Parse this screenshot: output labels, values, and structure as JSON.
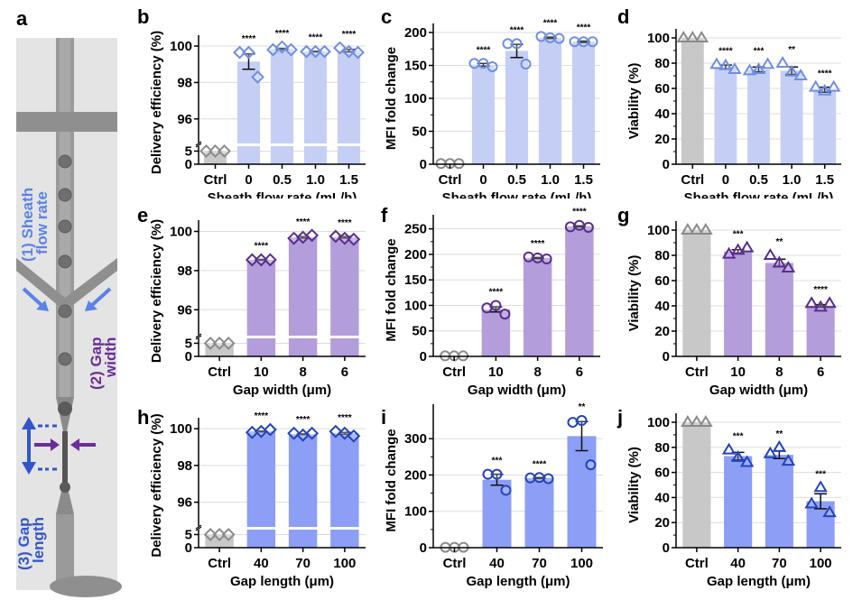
{
  "figure": {
    "panel_a": {
      "letter": "a",
      "labels": {
        "sheath_line1": "(1) Sheath",
        "sheath_line2": "flow rate",
        "gapwidth_line1": "(2) Gap",
        "gapwidth_line2": "width",
        "gaplength_line1": "(3) Gap",
        "gaplength_line2": "length"
      },
      "colors": {
        "sheath": "#5b82e8",
        "gapwidth": "#6a2d9a",
        "gaplength": "#3355cc"
      }
    }
  },
  "chart_data": [
    {
      "panel": "b",
      "type": "bar",
      "title": "",
      "xlabel": "Sheath flow rate (mL/h)",
      "ylabel": "Delivery efficiency (%)",
      "categories": [
        "Ctrl",
        "0",
        "0.5",
        "1.0",
        "1.5"
      ],
      "values": [
        5,
        99.15,
        99.85,
        99.7,
        99.75
      ],
      "errors": [
        0,
        0.42,
        0.03,
        0.02,
        0.07
      ],
      "points": [
        [
          5,
          5,
          5
        ],
        [
          99.65,
          99.65,
          98.3
        ],
        [
          99.8,
          99.95,
          99.8
        ],
        [
          99.7,
          99.7,
          99.7
        ],
        [
          99.9,
          99.7,
          99.65
        ]
      ],
      "significance": [
        "",
        "****",
        "****",
        "****",
        "****"
      ],
      "axis_break": {
        "lower": [
          0,
          5.5
        ],
        "upper": [
          95,
          100.3
        ]
      },
      "yticks_lower": [
        0,
        5
      ],
      "yticks_upper": [
        96,
        98,
        100
      ],
      "marker": "diamond",
      "ctrl_color": "#c8c8c8",
      "bar_color": "#c5cff5",
      "marker_color": "#6f8ee0",
      "grid": true
    },
    {
      "panel": "c",
      "type": "bar",
      "title": "",
      "xlabel": "Sheath flow rate (mL/h)",
      "ylabel": "MFI fold change",
      "categories": [
        "Ctrl",
        "0",
        "0.5",
        "1.0",
        "1.5"
      ],
      "values": [
        1,
        151,
        172,
        192,
        186
      ],
      "errors": [
        0,
        2,
        10,
        1,
        1
      ],
      "points": [
        [
          1,
          1,
          1
        ],
        [
          153,
          153,
          148
        ],
        [
          183,
          183,
          152
        ],
        [
          194,
          192,
          191
        ],
        [
          186,
          186,
          186
        ]
      ],
      "significance": [
        "",
        "****",
        "****",
        "****",
        "****"
      ],
      "ylim": [
        0,
        200
      ],
      "yticks": [
        0,
        50,
        100,
        150,
        200
      ],
      "marker": "circle",
      "ctrl_color": "#c8c8c8",
      "bar_color": "#c5cff5",
      "marker_color": "#6f8ee0",
      "grid": true
    },
    {
      "panel": "d",
      "type": "bar",
      "title": "",
      "xlabel": "Sheath flow rate (mL/h)",
      "ylabel": "Viability (%)",
      "categories": [
        "Ctrl",
        "0",
        "0.5",
        "1.0",
        "1.5"
      ],
      "values": [
        100,
        77,
        75,
        74,
        59
      ],
      "errors": [
        0,
        1.5,
        2,
        3,
        2
      ],
      "points": [
        [
          100,
          100,
          100
        ],
        [
          79,
          78,
          75
        ],
        [
          74,
          75,
          79
        ],
        [
          80,
          73,
          70
        ],
        [
          61,
          58,
          61
        ]
      ],
      "significance": [
        "",
        "****",
        "***",
        "**",
        "****"
      ],
      "ylim": [
        0,
        100
      ],
      "yticks": [
        0,
        20,
        40,
        60,
        80,
        100
      ],
      "marker": "triangle",
      "ctrl_color": "#c8c8c8",
      "bar_color": "#c5cff5",
      "marker_color": "#6f8ee0",
      "grid": true
    },
    {
      "panel": "e",
      "type": "bar",
      "title": "",
      "xlabel": "Gap width (μm)",
      "ylabel": "Delivery efficiency (%)",
      "categories": [
        "Ctrl",
        "10",
        "8",
        "6"
      ],
      "values": [
        5,
        98.55,
        99.7,
        99.7
      ],
      "errors": [
        0,
        0.02,
        0.04,
        0.04
      ],
      "points": [
        [
          5,
          5,
          5
        ],
        [
          98.55,
          98.55,
          98.55
        ],
        [
          99.65,
          99.7,
          99.8
        ],
        [
          99.75,
          99.65,
          99.6
        ]
      ],
      "significance": [
        "",
        "****",
        "****",
        "****"
      ],
      "axis_break": {
        "lower": [
          0,
          5.5
        ],
        "upper": [
          95,
          100.3
        ]
      },
      "yticks_lower": [
        0,
        5
      ],
      "yticks_upper": [
        96,
        98,
        100
      ],
      "marker": "diamond",
      "ctrl_color": "#c8c8c8",
      "bar_color": "#b39ddb",
      "marker_color": "#5a2d8c",
      "grid": true
    },
    {
      "panel": "f",
      "type": "bar",
      "title": "",
      "xlabel": "Gap width (μm)",
      "ylabel": "MFI fold change",
      "categories": [
        "Ctrl",
        "10",
        "8",
        "6"
      ],
      "values": [
        1,
        92,
        193,
        255
      ],
      "errors": [
        0,
        5,
        1,
        1
      ],
      "points": [
        [
          1,
          1,
          1
        ],
        [
          95,
          100,
          83
        ],
        [
          195,
          193,
          191
        ],
        [
          254,
          257,
          253
        ]
      ],
      "significance": [
        "",
        "****",
        "****",
        "****"
      ],
      "ylim": [
        0,
        260
      ],
      "yticks": [
        0,
        50,
        100,
        150,
        200,
        250
      ],
      "marker": "circle",
      "ctrl_color": "#c8c8c8",
      "bar_color": "#b39ddb",
      "marker_color": "#5a2d8c",
      "grid": true
    },
    {
      "panel": "g",
      "type": "bar",
      "title": "",
      "xlabel": "Gap width (μm)",
      "ylabel": "Viability (%)",
      "categories": [
        "Ctrl",
        "10",
        "8",
        "6"
      ],
      "values": [
        100,
        83,
        74,
        40
      ],
      "errors": [
        0,
        1.5,
        3,
        1
      ],
      "points": [
        [
          100,
          100,
          100
        ],
        [
          81,
          84,
          86
        ],
        [
          80,
          74,
          70
        ],
        [
          42,
          39,
          42
        ]
      ],
      "significance": [
        "",
        "***",
        "**",
        "****"
      ],
      "ylim": [
        0,
        100
      ],
      "yticks": [
        0,
        20,
        40,
        60,
        80,
        100
      ],
      "marker": "triangle",
      "ctrl_color": "#c8c8c8",
      "bar_color": "#b39ddb",
      "marker_color": "#5a2d8c",
      "grid": true
    },
    {
      "panel": "h",
      "type": "bar",
      "title": "",
      "xlabel": "Gap length (μm)",
      "ylabel": "Delivery efficiency (%)",
      "categories": [
        "Ctrl",
        "40",
        "70",
        "100"
      ],
      "values": [
        5,
        99.85,
        99.7,
        99.75
      ],
      "errors": [
        0,
        0.02,
        0.02,
        0.05
      ],
      "points": [
        [
          5,
          5,
          5
        ],
        [
          99.8,
          99.85,
          99.95
        ],
        [
          99.75,
          99.65,
          99.75
        ],
        [
          99.85,
          99.75,
          99.6
        ]
      ],
      "significance": [
        "",
        "****",
        "****",
        "****"
      ],
      "axis_break": {
        "lower": [
          0,
          5.5
        ],
        "upper": [
          95,
          100.3
        ]
      },
      "yticks_lower": [
        0,
        5
      ],
      "yticks_upper": [
        96,
        98,
        100
      ],
      "marker": "diamond",
      "ctrl_color": "#c8c8c8",
      "bar_color": "#8c9ef5",
      "marker_color": "#2244bb",
      "grid": true
    },
    {
      "panel": "i",
      "type": "bar",
      "title": "",
      "xlabel": "Gap length (μm)",
      "ylabel": "MFI fold change",
      "categories": [
        "Ctrl",
        "40",
        "70",
        "100"
      ],
      "values": [
        1,
        187,
        192,
        307
      ],
      "errors": [
        0,
        15,
        1,
        40
      ],
      "points": [
        [
          1,
          1,
          1
        ],
        [
          202,
          202,
          158
        ],
        [
          192,
          193,
          190
        ],
        [
          345,
          350,
          228
        ]
      ],
      "significance": [
        "",
        "***",
        "****",
        "**"
      ],
      "ylim": [
        0,
        370
      ],
      "yticks": [
        0,
        100,
        200,
        300
      ],
      "marker": "circle",
      "ctrl_color": "#c8c8c8",
      "bar_color": "#8c9ef5",
      "marker_color": "#2244bb",
      "grid": true
    },
    {
      "panel": "j",
      "type": "bar",
      "title": "",
      "xlabel": "Gap length (μm)",
      "ylabel": "Viability (%)",
      "categories": [
        "Ctrl",
        "40",
        "70",
        "100"
      ],
      "values": [
        100,
        73,
        74,
        37
      ],
      "errors": [
        0,
        3,
        3,
        6
      ],
      "points": [
        [
          100,
          100,
          100
        ],
        [
          78,
          72,
          68
        ],
        [
          75,
          80,
          69
        ],
        [
          35,
          48,
          28
        ]
      ],
      "significance": [
        "",
        "***",
        "**",
        "***"
      ],
      "ylim": [
        0,
        100
      ],
      "yticks": [
        0,
        20,
        40,
        60,
        80,
        100
      ],
      "marker": "triangle",
      "ctrl_color": "#c8c8c8",
      "bar_color": "#8c9ef5",
      "marker_color": "#2244bb",
      "grid": true
    }
  ]
}
